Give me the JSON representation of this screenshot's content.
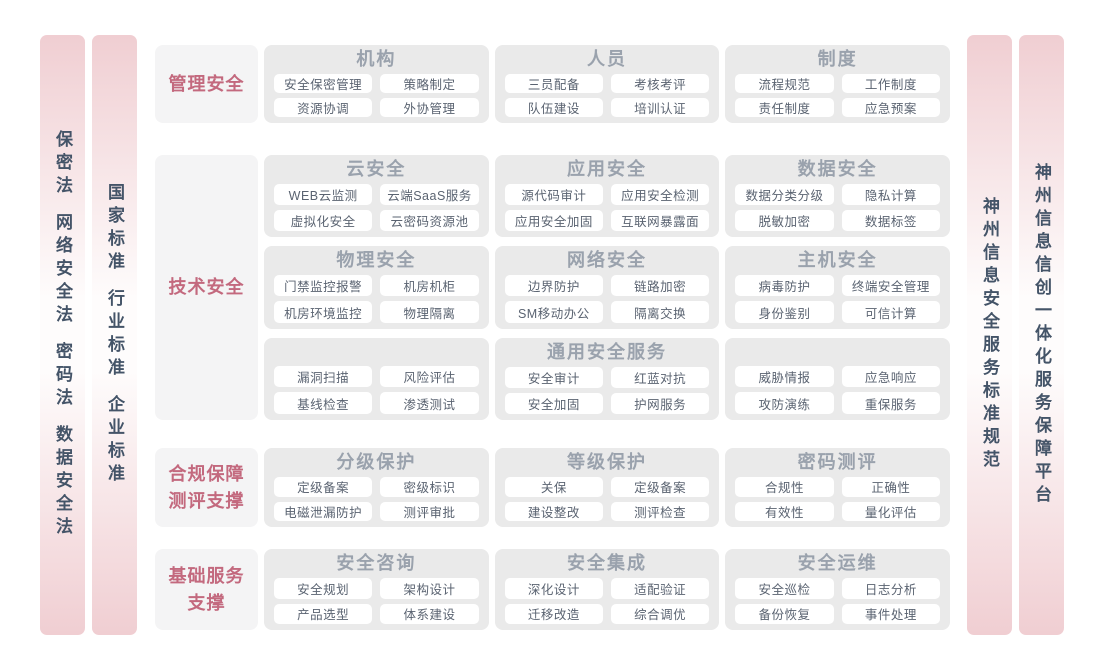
{
  "colors": {
    "accent_pink": "#c3697e",
    "section_title_gray": "#9aa2ad",
    "chip_text": "#5a6371",
    "column_background": "#eaeaea",
    "label_background": "#f4f4f5",
    "pillar_pink": "#f0ced2",
    "pillar_text": "#445468"
  },
  "left_bars": [
    {
      "segments": [
        "保密法",
        "网络安全法",
        "密码法",
        "数据安全法"
      ]
    },
    {
      "segments": [
        "国家标准",
        "行业标准",
        "企业标准"
      ]
    }
  ],
  "right_bars": [
    {
      "segments": [
        "神州信息安全服务标准规范"
      ]
    },
    {
      "segments": [
        "神州信息信创一体化服务保障平台"
      ]
    }
  ],
  "rows": [
    {
      "label_lines": [
        "管理安全"
      ],
      "groups": [
        {
          "columns": [
            {
              "title": "机构",
              "items": [
                "安全保密管理",
                "策略制定",
                "资源协调",
                "外协管理"
              ]
            },
            {
              "title": "人员",
              "items": [
                "三员配备",
                "考核考评",
                "队伍建设",
                "培训认证"
              ]
            },
            {
              "title": "制度",
              "items": [
                "流程规范",
                "工作制度",
                "责任制度",
                "应急预案"
              ]
            }
          ]
        }
      ]
    },
    {
      "label_lines": [
        "技术安全"
      ],
      "groups": [
        {
          "columns": [
            {
              "title": "云安全",
              "items": [
                "WEB云监测",
                "云端SaaS服务",
                "虚拟化安全",
                "云密码资源池"
              ]
            },
            {
              "title": "应用安全",
              "items": [
                "源代码审计",
                "应用安全检测",
                "应用安全加固",
                "互联网暴露面"
              ]
            },
            {
              "title": "数据安全",
              "items": [
                "数据分类分级",
                "隐私计算",
                "脱敏加密",
                "数据标签"
              ]
            }
          ]
        },
        {
          "columns": [
            {
              "title": "物理安全",
              "items": [
                "门禁监控报警",
                "机房机柜",
                "机房环境监控",
                "物理隔离"
              ]
            },
            {
              "title": "网络安全",
              "items": [
                "边界防护",
                "链路加密",
                "SM移动办公",
                "隔离交换"
              ]
            },
            {
              "title": "主机安全",
              "items": [
                "病毒防护",
                "终端安全管理",
                "身份鉴别",
                "可信计算"
              ]
            }
          ]
        },
        {
          "columns": [
            {
              "title": "",
              "items": [
                "漏洞扫描",
                "风险评估",
                "基线检查",
                "渗透测试"
              ]
            },
            {
              "title": "通用安全服务",
              "items": [
                "安全审计",
                "红蓝对抗",
                "安全加固",
                "护网服务"
              ]
            },
            {
              "title": "",
              "items": [
                "威胁情报",
                "应急响应",
                "攻防演练",
                "重保服务"
              ]
            }
          ]
        }
      ]
    },
    {
      "label_lines": [
        "合规保障",
        "测评支撑"
      ],
      "groups": [
        {
          "columns": [
            {
              "title": "分级保护",
              "items": [
                "定级备案",
                "密级标识",
                "电磁泄漏防护",
                "测评审批"
              ]
            },
            {
              "title": "等级保护",
              "items": [
                "关保",
                "定级备案",
                "建设整改",
                "测评检查"
              ]
            },
            {
              "title": "密码测评",
              "items": [
                "合规性",
                "正确性",
                "有效性",
                "量化评估"
              ]
            }
          ]
        }
      ]
    },
    {
      "label_lines": [
        "基础服务",
        "支撑"
      ],
      "groups": [
        {
          "columns": [
            {
              "title": "安全咨询",
              "items": [
                "安全规划",
                "架构设计",
                "产品选型",
                "体系建设"
              ]
            },
            {
              "title": "安全集成",
              "items": [
                "深化设计",
                "适配验证",
                "迁移改造",
                "综合调优"
              ]
            },
            {
              "title": "安全运维",
              "items": [
                "安全巡检",
                "日志分析",
                "备份恢复",
                "事件处理"
              ]
            }
          ]
        }
      ]
    }
  ]
}
